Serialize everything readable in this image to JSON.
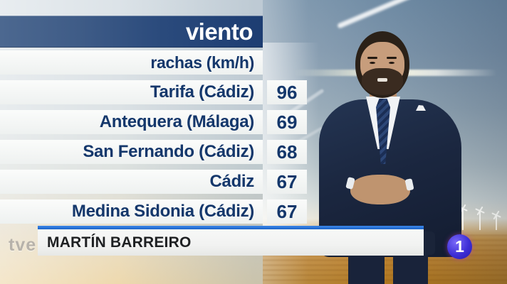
{
  "header": {
    "title": "viento",
    "subtitle": "rachas (km/h)"
  },
  "table": {
    "rows": [
      {
        "location": "Tarifa (Cádiz)",
        "value": "96"
      },
      {
        "location": "Antequera (Málaga)",
        "value": "69"
      },
      {
        "location": "San Fernando (Cádiz)",
        "value": "68"
      },
      {
        "location": "Cádiz",
        "value": "67"
      },
      {
        "location": "Medina Sidonia (Cádiz)",
        "value": "67"
      }
    ]
  },
  "chart_data": {
    "type": "table",
    "title": "viento",
    "subtitle": "rachas (km/h)",
    "categories": [
      "Tarifa (Cádiz)",
      "Antequera (Málaga)",
      "San Fernando (Cádiz)",
      "Cádiz",
      "Medina Sidonia (Cádiz)"
    ],
    "values": [
      96,
      69,
      68,
      67,
      67
    ],
    "unit": "km/h"
  },
  "lower_third": {
    "presenter_name": "MARTÍN BARREIRO"
  },
  "logos": {
    "network": "tve",
    "channel": "1"
  },
  "colors": {
    "header_navy": "#1d3d72",
    "header_slate": "#4c6890",
    "text_navy": "#14376b",
    "bar_white": "#f7f8f7",
    "banner_line_blue": "#1e6fd4",
    "field_orange": "#bd8433",
    "sky_blue": "#6f8ba4",
    "channel_logo_blue": "#3d2ed6"
  }
}
